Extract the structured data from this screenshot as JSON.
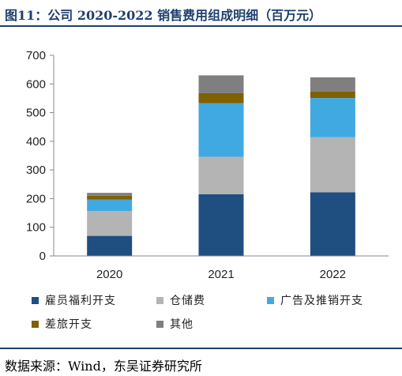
{
  "header": {
    "title": "图11：公司 2020-2022 销售费用组成明细（百万元）"
  },
  "footer": {
    "source": "数据来源：Wind，东吴证券研究所"
  },
  "chart_data": {
    "type": "bar",
    "stacked": true,
    "categories": [
      "2020",
      "2021",
      "2022"
    ],
    "ylim": [
      0,
      700
    ],
    "yticks": [
      0,
      100,
      200,
      300,
      400,
      500,
      600,
      700
    ],
    "grid": false,
    "legend_position": "bottom",
    "series": [
      {
        "name": "雇员福利开支",
        "color": "#1f4e80",
        "values": [
          70,
          215,
          222
        ]
      },
      {
        "name": "仓储费",
        "color": "#b4b4b4",
        "values": [
          87,
          131,
          192
        ]
      },
      {
        "name": "广告及推销开支",
        "color": "#41a9e1",
        "values": [
          40,
          187,
          137
        ]
      },
      {
        "name": "差旅开支",
        "color": "#806000",
        "values": [
          13,
          35,
          23
        ]
      },
      {
        "name": "其他",
        "color": "#7f7f7f",
        "values": [
          10,
          62,
          49
        ]
      }
    ]
  }
}
